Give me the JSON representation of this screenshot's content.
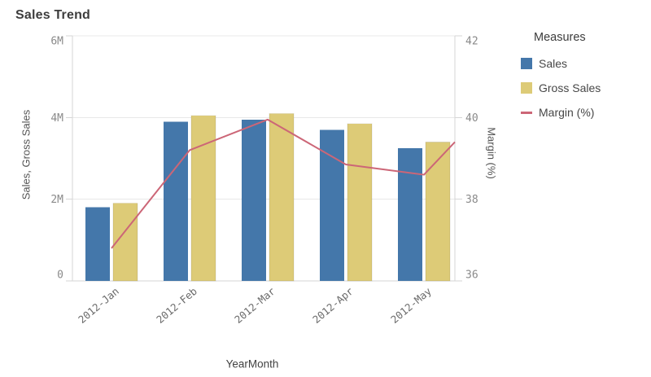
{
  "chart_data": {
    "type": "combo",
    "title": "Sales Trend",
    "xlabel": "YearMonth",
    "ylabel_left": "Sales, Gross Sales",
    "ylabel_right": "Margin (%)",
    "categories": [
      "2012-Jan",
      "2012-Feb",
      "2012-Mar",
      "2012-Apr",
      "2012-May"
    ],
    "left_axis": {
      "ticks": [
        "0",
        "2M",
        "4M",
        "6M"
      ],
      "range_millions": [
        0,
        6
      ]
    },
    "right_axis": {
      "ticks": [
        "36",
        "38",
        "40",
        "42"
      ],
      "range_percent": [
        36,
        42
      ]
    },
    "series": [
      {
        "name": "Sales",
        "type": "bar",
        "color": "#4477aa",
        "values_millions": [
          1.8,
          3.9,
          3.95,
          3.7,
          3.25
        ]
      },
      {
        "name": "Gross Sales",
        "type": "bar",
        "color": "#ddcb77",
        "values_millions": [
          1.9,
          4.05,
          4.1,
          3.85,
          3.4
        ]
      },
      {
        "name": "Margin (%)",
        "type": "line",
        "color": "#cc6677",
        "values_percent": [
          36.8,
          39.2,
          39.95,
          38.85,
          38.6
        ],
        "edge_value_percent": 39.4
      }
    ],
    "grid": true,
    "legend_position": "right"
  },
  "legend": {
    "title": "Measures",
    "items": [
      {
        "label": "Sales",
        "swatch": "square",
        "color": "#4477aa"
      },
      {
        "label": "Gross Sales",
        "swatch": "square",
        "color": "#ddcb77"
      },
      {
        "label": "Margin (%)",
        "swatch": "line",
        "color": "#cc6677"
      }
    ]
  },
  "style": {
    "grid_color": "#e8e8e8",
    "axis_color": "#d6d6d6",
    "tick_label_color": "#8a8a8a",
    "x_label_color": "#6b6b6b"
  }
}
